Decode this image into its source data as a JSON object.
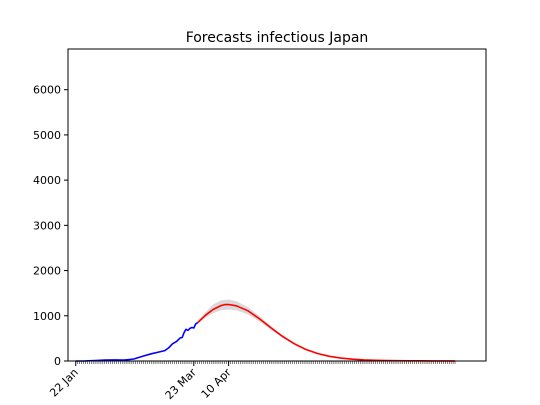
{
  "chart_data": {
    "type": "line",
    "title": "Forecasts infectious Japan",
    "xlabel": "",
    "ylabel": "",
    "ylim": [
      0,
      6900
    ],
    "xlim": [
      "2020-01-18",
      "2020-08-21"
    ],
    "yticks": [
      0,
      1000,
      2000,
      3000,
      4000,
      5000,
      6000
    ],
    "xticks": [
      {
        "date": "2020-01-22",
        "label": "22 Jan"
      },
      {
        "date": "2020-03-23",
        "label": "23 Mar"
      },
      {
        "date": "2020-04-10",
        "label": "10 Apr"
      }
    ],
    "minor_ticks": "daily",
    "grid": false,
    "series": [
      {
        "color": "#0000ff",
        "points": [
          [
            "2020-01-22",
            0
          ],
          [
            "2020-01-27",
            2
          ],
          [
            "2020-02-01",
            10
          ],
          [
            "2020-02-06",
            20
          ],
          [
            "2020-02-11",
            25
          ],
          [
            "2020-02-16",
            20
          ],
          [
            "2020-02-21",
            45
          ],
          [
            "2020-02-26",
            110
          ],
          [
            "2020-03-01",
            160
          ],
          [
            "2020-03-05",
            200
          ],
          [
            "2020-03-08",
            230
          ],
          [
            "2020-03-10",
            290
          ],
          [
            "2020-03-12",
            380
          ],
          [
            "2020-03-14",
            430
          ],
          [
            "2020-03-16",
            510
          ],
          [
            "2020-03-17",
            520
          ],
          [
            "2020-03-18",
            630
          ],
          [
            "2020-03-19",
            700
          ],
          [
            "2020-03-20",
            680
          ],
          [
            "2020-03-21",
            720
          ],
          [
            "2020-03-22",
            740
          ],
          [
            "2020-03-23",
            730
          ],
          [
            "2020-03-24",
            820
          ],
          [
            "2020-03-25",
            850
          ]
        ]
      },
      {
        "color": "#ff0000",
        "points": [
          [
            "2020-03-25",
            850
          ],
          [
            "2020-03-29",
            1010
          ],
          [
            "2020-04-02",
            1140
          ],
          [
            "2020-04-06",
            1225
          ],
          [
            "2020-04-08",
            1248
          ],
          [
            "2020-04-10",
            1250
          ],
          [
            "2020-04-14",
            1220
          ],
          [
            "2020-04-20",
            1110
          ],
          [
            "2020-04-26",
            930
          ],
          [
            "2020-05-02",
            730
          ],
          [
            "2020-05-08",
            540
          ],
          [
            "2020-05-14",
            380
          ],
          [
            "2020-05-20",
            255
          ],
          [
            "2020-05-26",
            165
          ],
          [
            "2020-06-01",
            105
          ],
          [
            "2020-06-07",
            65
          ],
          [
            "2020-06-13",
            40
          ],
          [
            "2020-06-19",
            25
          ],
          [
            "2020-06-25",
            15
          ],
          [
            "2020-07-01",
            10
          ],
          [
            "2020-07-07",
            7
          ],
          [
            "2020-07-13",
            5
          ],
          [
            "2020-07-19",
            4
          ],
          [
            "2020-07-25",
            3
          ],
          [
            "2020-07-31",
            2
          ],
          [
            "2020-08-05",
            2
          ]
        ]
      }
    ],
    "band": {
      "color": "#d9d9d9",
      "upper": [
        [
          "2020-03-25",
          880
        ],
        [
          "2020-03-29",
          1080
        ],
        [
          "2020-04-02",
          1250
        ],
        [
          "2020-04-06",
          1340
        ],
        [
          "2020-04-10",
          1360
        ],
        [
          "2020-04-14",
          1320
        ],
        [
          "2020-04-20",
          1190
        ],
        [
          "2020-04-26",
          990
        ],
        [
          "2020-05-02",
          770
        ],
        [
          "2020-05-08",
          570
        ],
        [
          "2020-05-14",
          400
        ],
        [
          "2020-05-20",
          270
        ],
        [
          "2020-05-26",
          175
        ],
        [
          "2020-06-01",
          112
        ],
        [
          "2020-06-07",
          70
        ],
        [
          "2020-06-13",
          44
        ],
        [
          "2020-06-19",
          28
        ],
        [
          "2020-06-25",
          17
        ],
        [
          "2020-07-01",
          11
        ],
        [
          "2020-07-13",
          6
        ],
        [
          "2020-07-25",
          4
        ],
        [
          "2020-08-05",
          3
        ]
      ],
      "lower": [
        [
          "2020-03-25",
          820
        ],
        [
          "2020-03-29",
          950
        ],
        [
          "2020-04-02",
          1060
        ],
        [
          "2020-04-06",
          1120
        ],
        [
          "2020-04-10",
          1140
        ],
        [
          "2020-04-14",
          1120
        ],
        [
          "2020-04-20",
          1030
        ],
        [
          "2020-04-26",
          870
        ],
        [
          "2020-05-02",
          690
        ],
        [
          "2020-05-08",
          510
        ],
        [
          "2020-05-14",
          360
        ],
        [
          "2020-05-20",
          240
        ],
        [
          "2020-05-26",
          155
        ],
        [
          "2020-06-01",
          98
        ],
        [
          "2020-06-07",
          60
        ],
        [
          "2020-06-13",
          37
        ],
        [
          "2020-06-19",
          22
        ],
        [
          "2020-06-25",
          13
        ],
        [
          "2020-07-01",
          9
        ],
        [
          "2020-07-13",
          4
        ],
        [
          "2020-07-25",
          2
        ],
        [
          "2020-08-05",
          1
        ]
      ]
    }
  }
}
